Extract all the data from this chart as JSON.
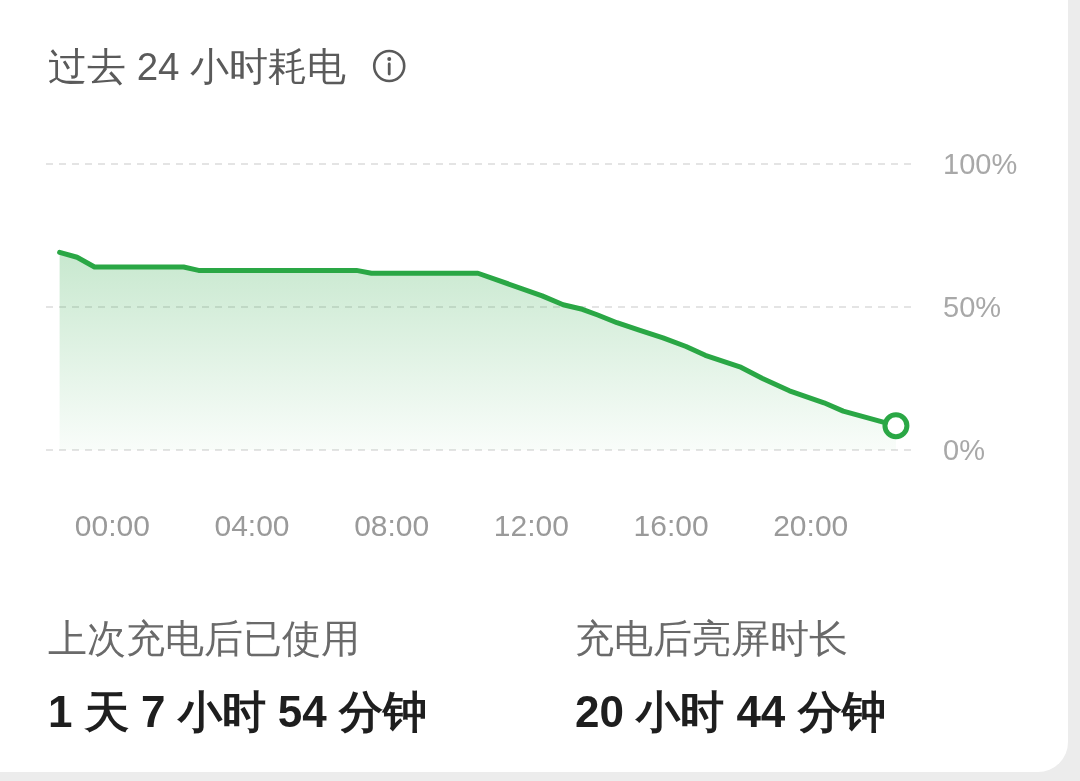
{
  "chart_data": {
    "type": "area",
    "title": "过去 24 小时耗电",
    "x": [
      -1.51,
      -1.01,
      -0.51,
      2.04,
      2.47,
      6.99,
      7.42,
      10.47,
      12.31,
      12.91,
      13.46,
      13.9,
      14.45,
      15.11,
      15.77,
      16.43,
      16.98,
      17.97,
      18.62,
      19.39,
      20.38,
      20.93,
      22.44
    ],
    "xlim": [
      -1.9,
      22.9
    ],
    "xticks": [
      {
        "value": 0,
        "label": "00:00"
      },
      {
        "value": 4,
        "label": "04:00"
      },
      {
        "value": 8,
        "label": "08:00"
      },
      {
        "value": 12,
        "label": "12:00"
      },
      {
        "value": 16,
        "label": "16:00"
      },
      {
        "value": 20,
        "label": "20:00"
      }
    ],
    "ylim": [
      0,
      100
    ],
    "yticks": [
      {
        "value": 0,
        "label": "0%"
      },
      {
        "value": 50,
        "label": "50%"
      },
      {
        "value": 100,
        "label": "100%"
      }
    ],
    "grid": "y",
    "line_style": "solid",
    "series": [
      {
        "color": "#2aa745",
        "marker": "none",
        "values": [
          69.1,
          67.4,
          64.0,
          64.0,
          62.8,
          62.8,
          61.8,
          61.8,
          53.9,
          50.8,
          49.2,
          47.2,
          44.5,
          41.8,
          39.2,
          36.2,
          33.1,
          29.1,
          25.0,
          20.7,
          16.5,
          13.6,
          8.5
        ]
      },
      {
        "type": "scatter",
        "color": "#2aa745",
        "marker": "circle",
        "x": [
          22.44
        ],
        "values": [
          8.5
        ]
      }
    ],
    "annotations": [
      "上次充电后已使用",
      "1 天 7 小时 54 分钟",
      "充电后亮屏时长",
      "20 小时 44 分钟"
    ]
  }
}
